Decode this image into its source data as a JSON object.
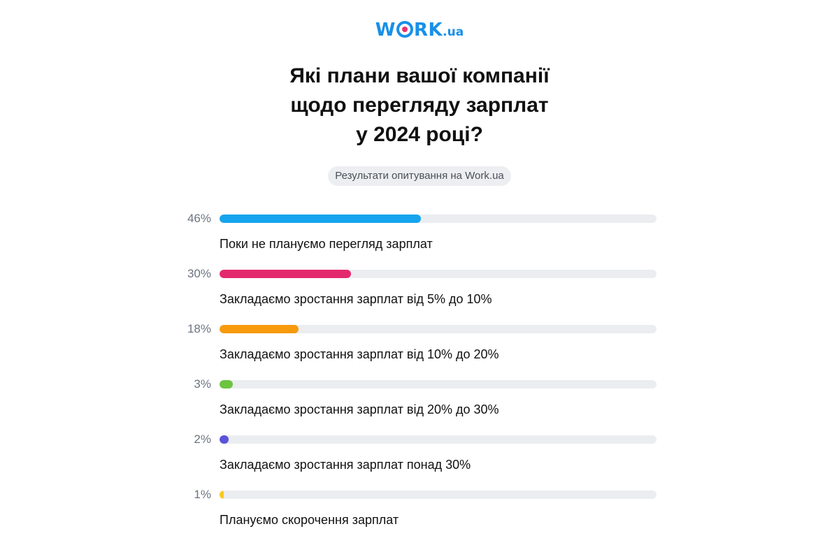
{
  "logo": {
    "main_left": "W",
    "main_right": "RK",
    "suffix": ".ua"
  },
  "title_lines": [
    "Які плани вашої компанії",
    "щодо перегляду зарплат",
    "у 2024 році?"
  ],
  "subtitle": "Результати опитування на Work.ua",
  "chart_data": {
    "type": "bar",
    "orientation": "horizontal",
    "title": "Які плани вашої компанії щодо перегляду зарплат у 2024 році?",
    "subtitle": "Результати опитування на Work.ua",
    "value_unit": "%",
    "xlim": [
      0,
      100
    ],
    "grid": false,
    "categories": [
      "Поки не плануємо перегляд зарплат",
      "Закладаємо зростання зарплат від 5% до 10%",
      "Закладаємо зростання зарплат від 10% до 20%",
      "Закладаємо зростання зарплат від 20% до 30%",
      "Закладаємо зростання зарплат понад 30%",
      "Плануємо скорочення зарплат"
    ],
    "values": [
      46,
      30,
      18,
      3,
      2,
      1
    ],
    "value_labels": [
      "46%",
      "30%",
      "18%",
      "3%",
      "2%",
      "1%"
    ],
    "colors": [
      "#16a4ee",
      "#e4286e",
      "#f79a0c",
      "#6cc440",
      "#5b53d8",
      "#f7c925"
    ],
    "track_color": "#ebedf0"
  }
}
